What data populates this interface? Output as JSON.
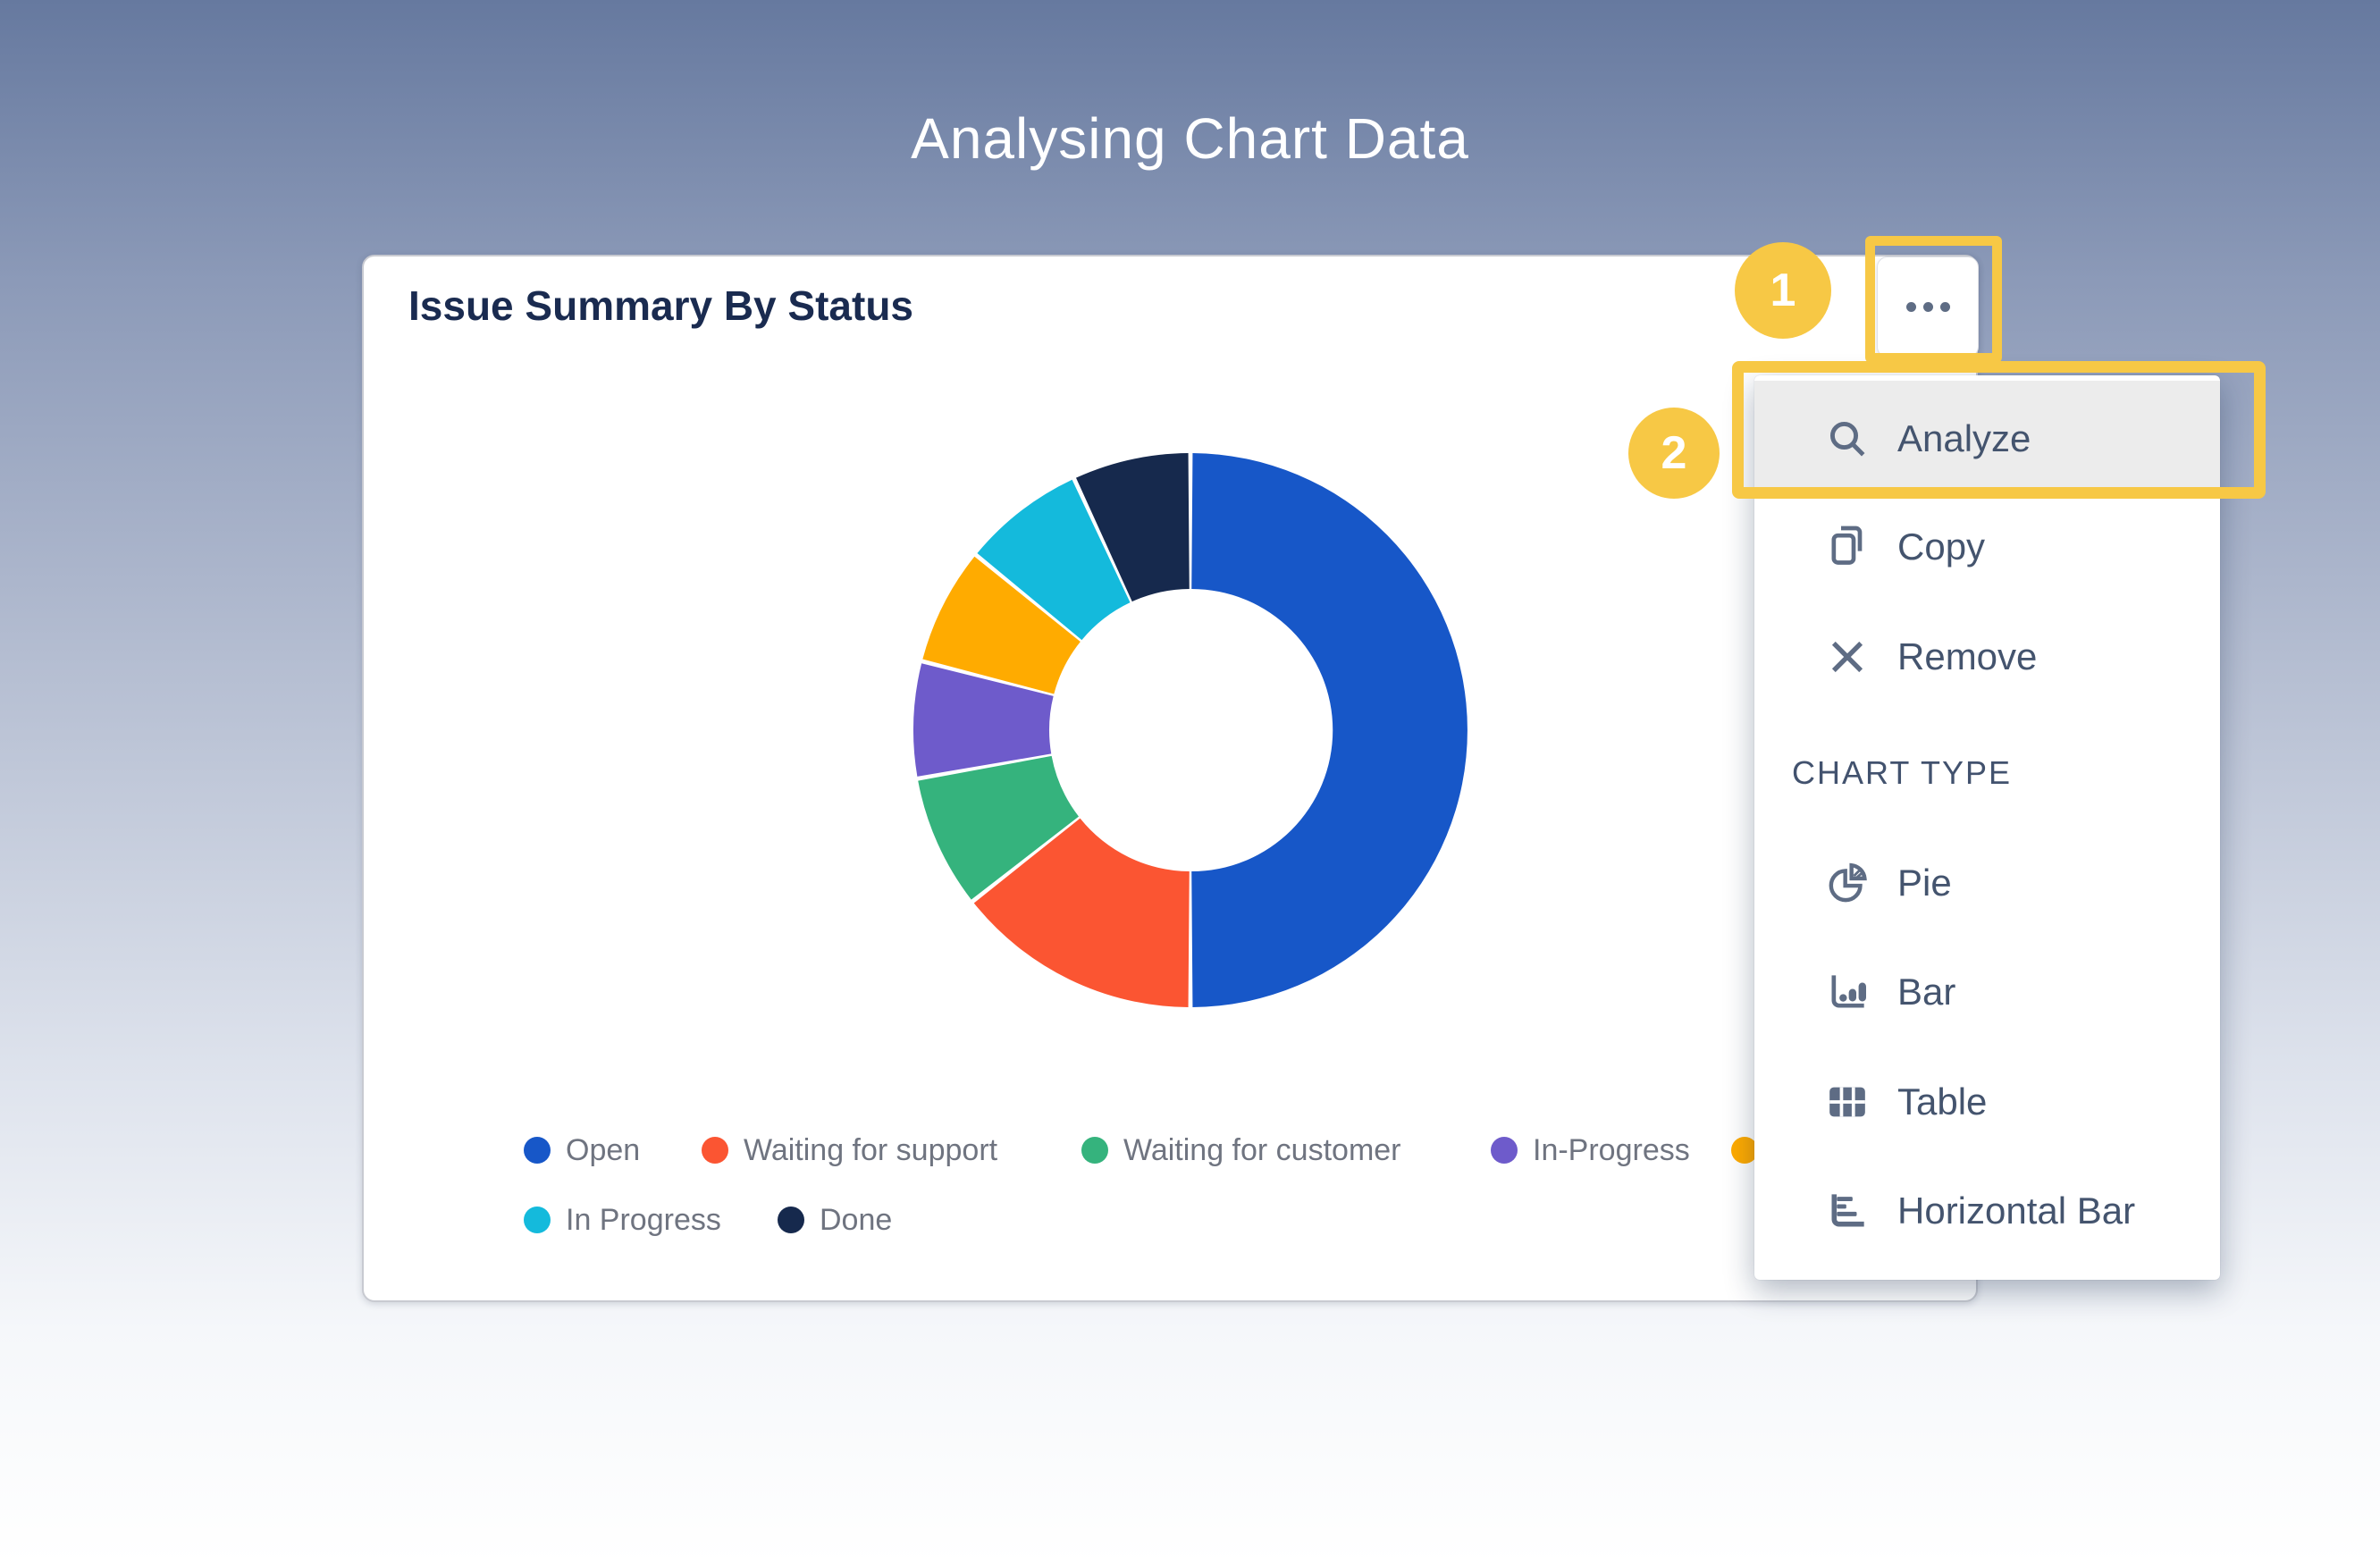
{
  "page_title": "Analysing Chart Data",
  "card": {
    "title": "Issue Summary By Status"
  },
  "chart_data": {
    "type": "pie",
    "subtype": "donut",
    "title": "Issue Summary By Status",
    "inner_radius_ratio": 0.51,
    "start_angle_deg": 0,
    "direction": "clockwise",
    "legend_position": "bottom",
    "series": [
      {
        "label": "Open",
        "value": 50.0,
        "color": "#1757C8"
      },
      {
        "label": "Waiting for support",
        "value": 14.4,
        "color": "#FB5532"
      },
      {
        "label": "Waiting for customer",
        "value": 7.8,
        "color": "#35B37D"
      },
      {
        "label": "In-Progress",
        "value": 6.8,
        "color": "#6E5BCB"
      },
      {
        "label": "",
        "value": 6.9,
        "color": "#FFAB00"
      },
      {
        "label": "In Progress",
        "value": 7.2,
        "color": "#14BADC"
      },
      {
        "label": "Done",
        "value": 6.9,
        "color": "#16294D"
      }
    ]
  },
  "widget_menu_button": {
    "icon": "ellipsis"
  },
  "context_menu": {
    "items": [
      {
        "label": "Analyze",
        "icon": "search-icon",
        "highlighted": true
      },
      {
        "label": "Copy",
        "icon": "copy-icon",
        "highlighted": false
      },
      {
        "label": "Remove",
        "icon": "close-icon",
        "highlighted": false
      }
    ],
    "section_header": "CHART TYPE",
    "chart_types": [
      {
        "label": "Pie",
        "icon": "pie-chart-icon"
      },
      {
        "label": "Bar",
        "icon": "bar-chart-icon"
      },
      {
        "label": "Table",
        "icon": "table-icon"
      },
      {
        "label": "Horizontal Bar",
        "icon": "horizontal-bar-chart-icon"
      }
    ]
  },
  "annotations": {
    "step1": "1",
    "step2": "2",
    "highlight_color": "#F7C845"
  }
}
